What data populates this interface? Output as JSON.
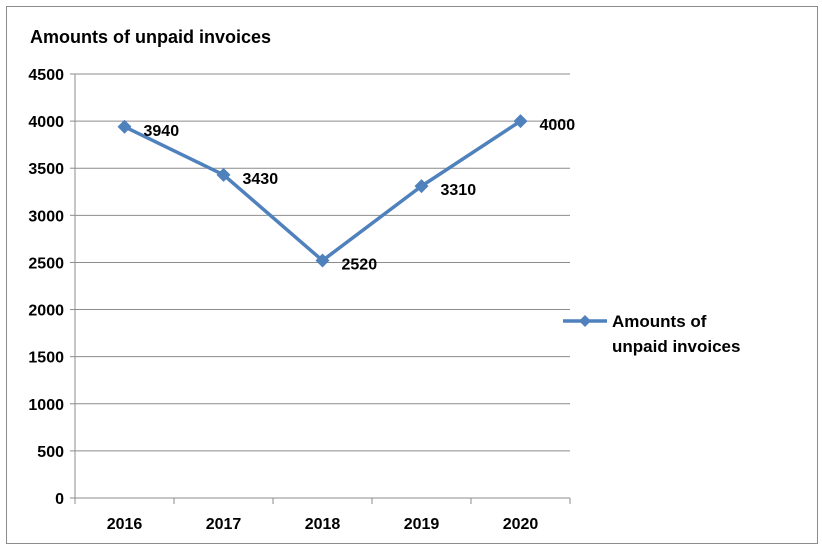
{
  "colors": {
    "series": "#4f81bd",
    "gridline": "#8c8c8c",
    "axis": "#8c8c8c",
    "frame": "#8c8c8c",
    "text": "#000000"
  },
  "chart_data": {
    "type": "line",
    "title": "Amounts of unpaid invoices",
    "xlabel": "",
    "ylabel": "",
    "categories": [
      "2016",
      "2017",
      "2018",
      "2019",
      "2020"
    ],
    "series": [
      {
        "name": "Amounts of unpaid invoices",
        "legend_lines": [
          "Amounts of",
          "unpaid invoices"
        ],
        "values": [
          3940,
          3430,
          2520,
          3310,
          4000
        ],
        "data_labels": [
          "3940",
          "3430",
          "2520",
          "3310",
          "4000"
        ],
        "marker": "diamond"
      }
    ],
    "ylim": [
      0,
      4500
    ],
    "yticks": [
      "0",
      "500",
      "1000",
      "1500",
      "2000",
      "2500",
      "3000",
      "3500",
      "4000",
      "4500"
    ],
    "grid": true,
    "legend_position": "right"
  }
}
